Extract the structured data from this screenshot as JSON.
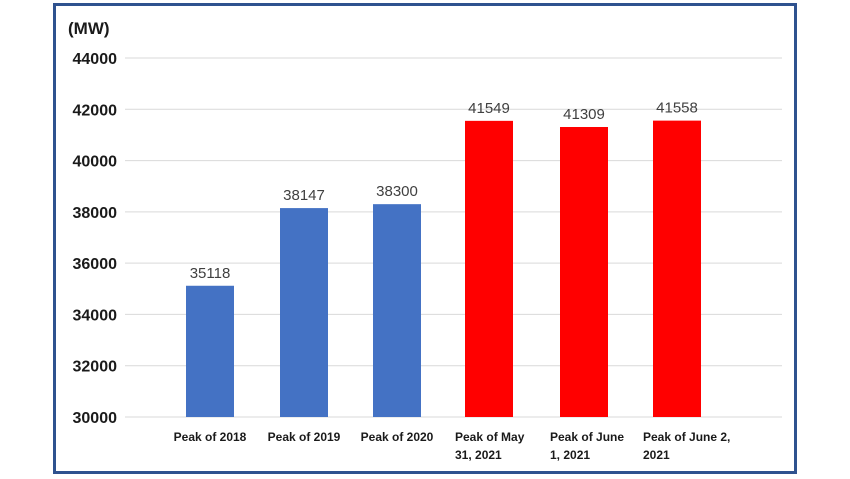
{
  "chart_data": {
    "type": "bar",
    "unit_label": "(MW)",
    "categories": [
      [
        "Peak of 2018"
      ],
      [
        "Peak of 2019"
      ],
      [
        "Peak of 2020"
      ],
      [
        "Peak of May",
        "31, 2021"
      ],
      [
        "Peak of June",
        "1, 2021"
      ],
      [
        "Peak of June 2,",
        "2021"
      ]
    ],
    "values": [
      35118,
      38147,
      38300,
      41549,
      41309,
      41558
    ],
    "data_labels": [
      "35118",
      "38147",
      "38300",
      "41549",
      "41309",
      "41558"
    ],
    "bar_colors": [
      "#4472c4",
      "#4472c4",
      "#4472c4",
      "#ff0000",
      "#ff0000",
      "#ff0000"
    ],
    "ylim": [
      30000,
      44000
    ],
    "yticks": [
      30000,
      32000,
      34000,
      36000,
      38000,
      40000,
      42000,
      44000
    ],
    "ytick_labels": [
      "30000",
      "32000",
      "34000",
      "36000",
      "38000",
      "40000",
      "42000",
      "44000"
    ],
    "grid": true,
    "legend": "none",
    "frame_color": "#2f528f"
  }
}
